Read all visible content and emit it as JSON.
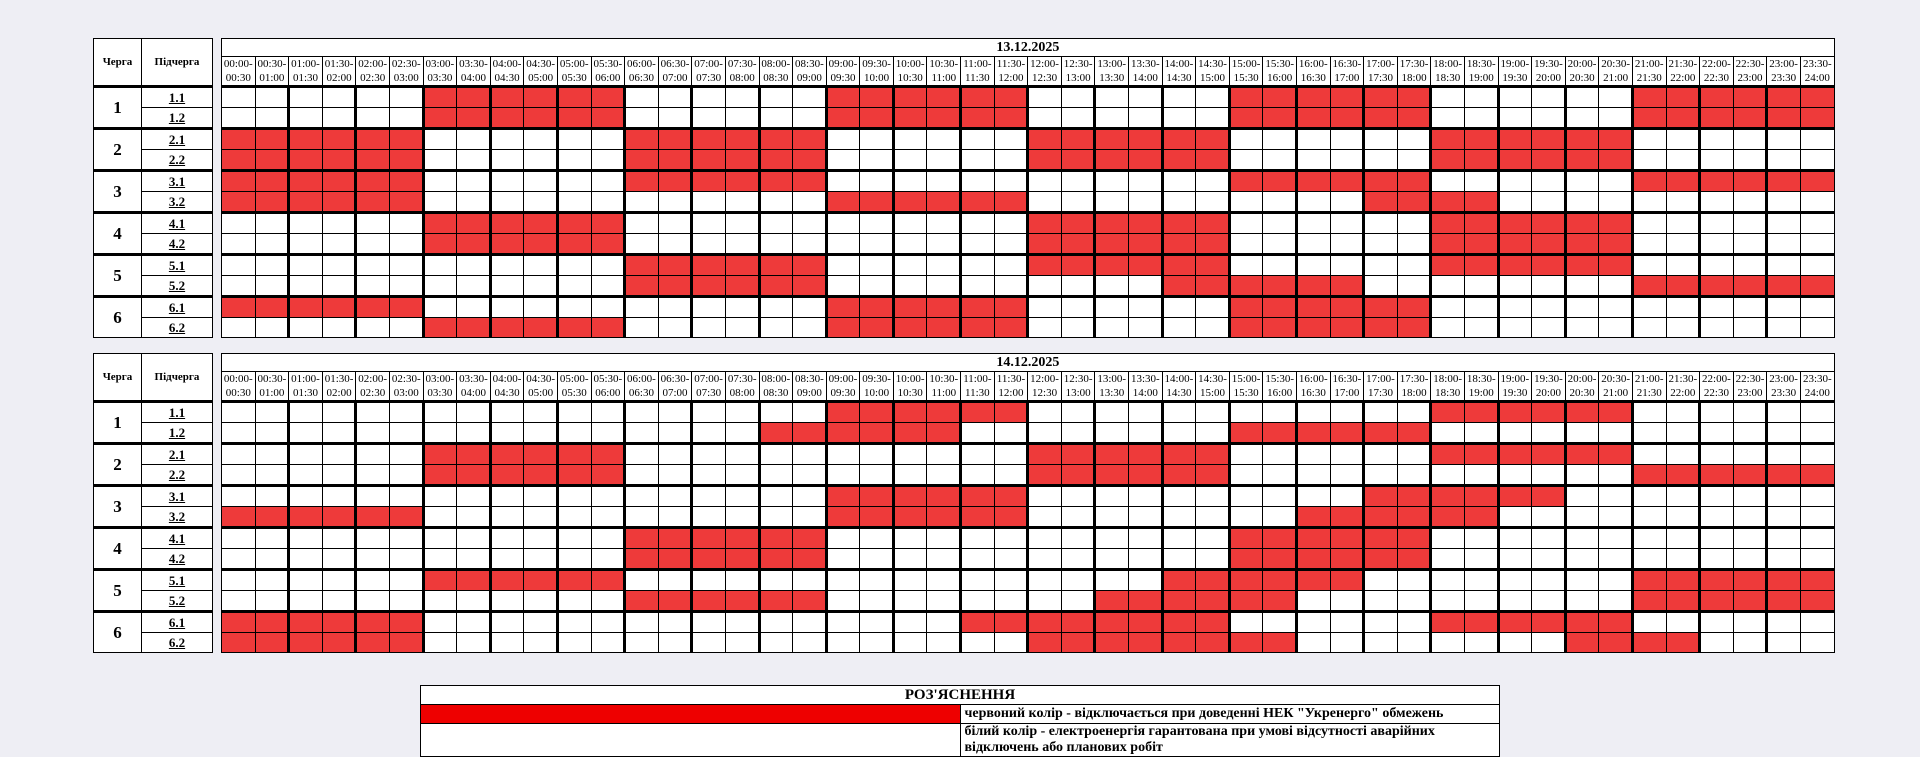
{
  "headers": {
    "queue": "Черга",
    "subqueue": "Підчерга"
  },
  "time_slots": [
    [
      "00:00-",
      "00:30"
    ],
    [
      "00:30-",
      "01:00"
    ],
    [
      "01:00-",
      "01:30"
    ],
    [
      "01:30-",
      "02:00"
    ],
    [
      "02:00-",
      "02:30"
    ],
    [
      "02:30-",
      "03:00"
    ],
    [
      "03:00-",
      "03:30"
    ],
    [
      "03:30-",
      "04:00"
    ],
    [
      "04:00-",
      "04:30"
    ],
    [
      "04:30-",
      "05:00"
    ],
    [
      "05:00-",
      "05:30"
    ],
    [
      "05:30-",
      "06:00"
    ],
    [
      "06:00-",
      "06:30"
    ],
    [
      "06:30-",
      "07:00"
    ],
    [
      "07:00-",
      "07:30"
    ],
    [
      "07:30-",
      "08:00"
    ],
    [
      "08:00-",
      "08:30"
    ],
    [
      "08:30-",
      "09:00"
    ],
    [
      "09:00-",
      "09:30"
    ],
    [
      "09:30-",
      "10:00"
    ],
    [
      "10:00-",
      "10:30"
    ],
    [
      "10:30-",
      "11:00"
    ],
    [
      "11:00-",
      "11:30"
    ],
    [
      "11:30-",
      "12:00"
    ],
    [
      "12:00-",
      "12:30"
    ],
    [
      "12:30-",
      "13:00"
    ],
    [
      "13:00-",
      "13:30"
    ],
    [
      "13:30-",
      "14:00"
    ],
    [
      "14:00-",
      "14:30"
    ],
    [
      "14:30-",
      "15:00"
    ],
    [
      "15:00-",
      "15:30"
    ],
    [
      "15:30-",
      "16:00"
    ],
    [
      "16:00-",
      "16:30"
    ],
    [
      "16:30-",
      "17:00"
    ],
    [
      "17:00-",
      "17:30"
    ],
    [
      "17:30-",
      "18:00"
    ],
    [
      "18:00-",
      "18:30"
    ],
    [
      "18:30-",
      "19:00"
    ],
    [
      "19:00-",
      "19:30"
    ],
    [
      "19:30-",
      "20:00"
    ],
    [
      "20:00-",
      "20:30"
    ],
    [
      "20:30-",
      "21:00"
    ],
    [
      "21:00-",
      "21:30"
    ],
    [
      "21:30-",
      "22:00"
    ],
    [
      "22:00-",
      "22:30"
    ],
    [
      "22:30-",
      "23:00"
    ],
    [
      "23:00-",
      "23:30"
    ],
    [
      "23:30-",
      "24:00"
    ]
  ],
  "colors": {
    "outage": "#ee3a3a",
    "guaranteed": "#ffffff"
  },
  "schedules": [
    {
      "date": "13.12.2025",
      "queues": [
        {
          "queue": "1",
          "subqueues": [
            {
              "label": "1.1",
              "slots": "000000111111000000111111000000111111000000111111"
            },
            {
              "label": "1.2",
              "slots": "000000111111000000111111000000111111000000111111"
            }
          ]
        },
        {
          "queue": "2",
          "subqueues": [
            {
              "label": "2.1",
              "slots": "111111000000111111000000111111000000111111000000"
            },
            {
              "label": "2.2",
              "slots": "111111000000111111000000111111000000111111000000"
            }
          ]
        },
        {
          "queue": "3",
          "subqueues": [
            {
              "label": "3.1",
              "slots": "111111000000111111000000000000111111000000111111"
            },
            {
              "label": "3.2",
              "slots": "111111000000000000111111000000000011110000000000"
            }
          ]
        },
        {
          "queue": "4",
          "subqueues": [
            {
              "label": "4.1",
              "slots": "000000111111000000000000111111000000111111000000"
            },
            {
              "label": "4.2",
              "slots": "000000111111000000000000111111000000111111000000"
            }
          ]
        },
        {
          "queue": "5",
          "subqueues": [
            {
              "label": "5.1",
              "slots": "000000000000111111000000111111000000111111000000"
            },
            {
              "label": "5.2",
              "slots": "000000000000111111000000000011111100000000111111"
            }
          ]
        },
        {
          "queue": "6",
          "subqueues": [
            {
              "label": "6.1",
              "slots": "111111000000000000111111000000111111000000000000"
            },
            {
              "label": "6.2",
              "slots": "000000111111000000111111000000111111000000000000"
            }
          ]
        }
      ]
    },
    {
      "date": "14.12.2025",
      "queues": [
        {
          "queue": "1",
          "subqueues": [
            {
              "label": "1.1",
              "slots": "000000000000000000111111000000000000111111000000"
            },
            {
              "label": "1.2",
              "slots": "000000000000000011111100000000111111000000000000"
            }
          ]
        },
        {
          "queue": "2",
          "subqueues": [
            {
              "label": "2.1",
              "slots": "000000111111000000000000111111000000111111000000"
            },
            {
              "label": "2.2",
              "slots": "000000111111000000000000111111000000000000111111"
            }
          ]
        },
        {
          "queue": "3",
          "subqueues": [
            {
              "label": "3.1",
              "slots": "000000000000000000111111000000000011111100000000"
            },
            {
              "label": "3.2",
              "slots": "111111000000000000111111000000001111110000000000"
            }
          ]
        },
        {
          "queue": "4",
          "subqueues": [
            {
              "label": "4.1",
              "slots": "000000000000111111000000000000111111000000000000"
            },
            {
              "label": "4.2",
              "slots": "000000000000111111000000000000111111000000000000"
            }
          ]
        },
        {
          "queue": "5",
          "subqueues": [
            {
              "label": "5.1",
              "slots": "000000111111000000000000000011111100000000111111"
            },
            {
              "label": "5.2",
              "slots": "000000000000111111000000001111110000000000111111"
            }
          ]
        },
        {
          "queue": "6",
          "subqueues": [
            {
              "label": "6.1",
              "slots": "111111000000000000000011111111000000111111000000"
            },
            {
              "label": "6.2",
              "slots": "111111000000000000000000111111110000000011110000"
            }
          ]
        }
      ]
    }
  ],
  "legend": {
    "title": "РОЗ'ЯСНЕННЯ",
    "items": [
      {
        "color": "#ee0000",
        "text": "червоний колір - відключається при доведенні НЕК \"Укренерго\" обмежень"
      },
      {
        "color": "#ffffff",
        "text": "білий колір - електроенергія гарантована при умові відсутності аварійних відключень або планових робіт"
      }
    ]
  }
}
